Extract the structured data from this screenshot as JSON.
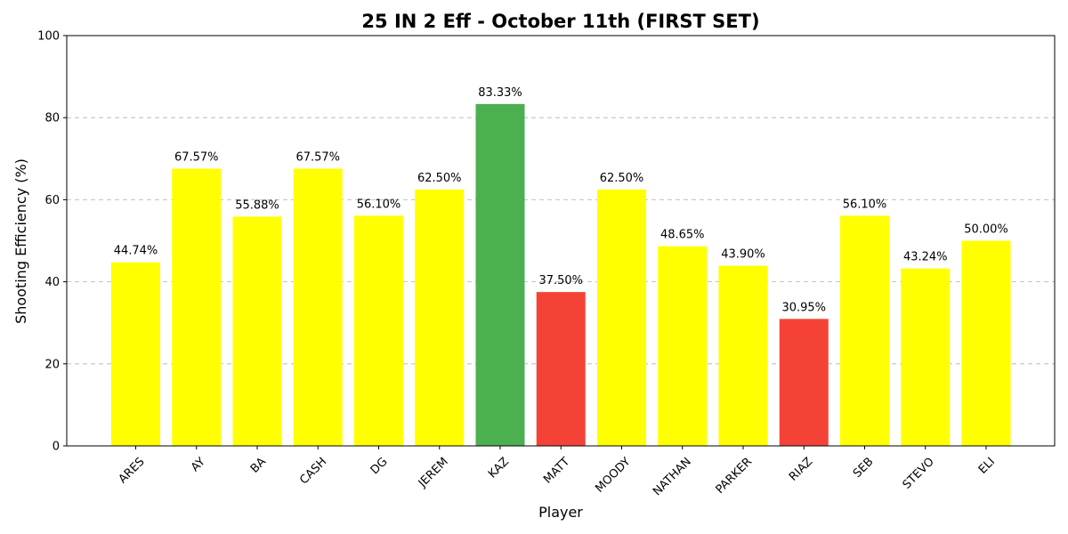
{
  "chart_data": {
    "type": "bar",
    "title": "25 IN 2 Eff - October 11th (FIRST SET)",
    "xlabel": "Player",
    "ylabel": "Shooting Efficiency (%)",
    "ylim": [
      0,
      100
    ],
    "yticks": [
      0,
      20,
      40,
      60,
      80,
      100
    ],
    "grid": "y-dashed",
    "categories": [
      "ARES",
      "AY",
      "BA",
      "CASH",
      "DG",
      "JEREM",
      "KAZ",
      "MATT",
      "MOODY",
      "NATHAN",
      "PARKER",
      "RIAZ",
      "SEB",
      "STEVO",
      "ELI"
    ],
    "values": [
      44.74,
      67.57,
      55.88,
      67.57,
      56.1,
      62.5,
      83.33,
      37.5,
      62.5,
      48.65,
      43.9,
      30.95,
      56.1,
      43.24,
      50.0
    ],
    "value_labels": [
      "44.74%",
      "67.57%",
      "55.88%",
      "67.57%",
      "56.10%",
      "62.50%",
      "83.33%",
      "37.50%",
      "62.50%",
      "48.65%",
      "43.90%",
      "30.95%",
      "56.10%",
      "43.24%",
      "50.00%"
    ],
    "colors": [
      "#ffff00",
      "#ffff00",
      "#ffff00",
      "#ffff00",
      "#ffff00",
      "#ffff00",
      "#4caf50",
      "#f44336",
      "#ffff00",
      "#ffff00",
      "#ffff00",
      "#f44336",
      "#ffff00",
      "#ffff00",
      "#ffff00"
    ]
  }
}
